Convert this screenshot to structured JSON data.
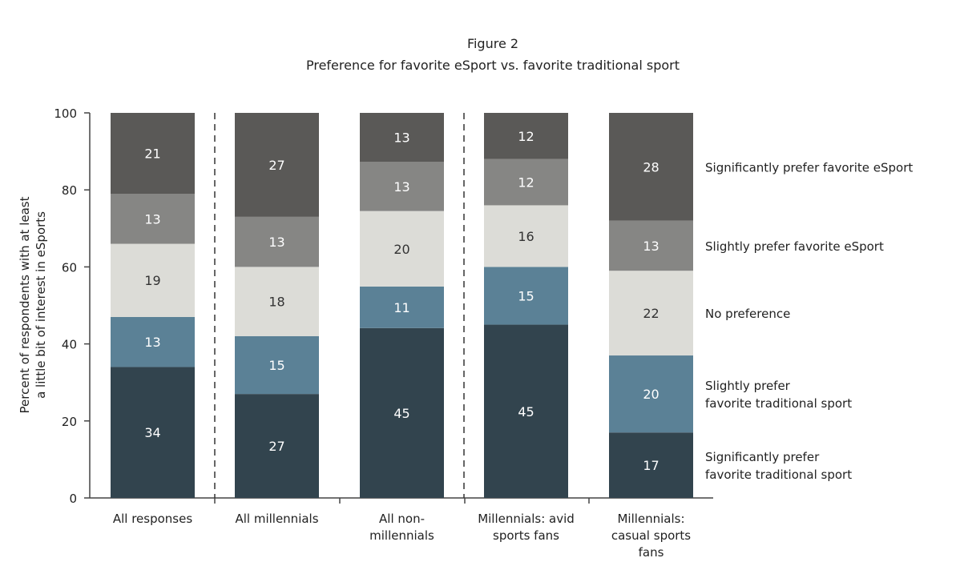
{
  "chart_data": {
    "type": "bar",
    "stacked": true,
    "title": "Figure 2",
    "subtitle": "Preference for favorite eSport vs. favorite traditional sport",
    "ylabel": [
      "Percent of respondents with at least",
      "a little bit of interest in eSports"
    ],
    "xlabel": "",
    "ylim": [
      0,
      100
    ],
    "yticks": [
      0,
      20,
      40,
      60,
      80,
      100
    ],
    "grid": false,
    "legend_placement": "right",
    "categories": [
      [
        "All responses"
      ],
      [
        "All millennials"
      ],
      [
        "All non-",
        "millennials"
      ],
      [
        "Millennials: avid",
        "sports fans"
      ],
      [
        "Millennials:",
        "casual sports",
        "fans"
      ]
    ],
    "group_separators_after": [
      0,
      2
    ],
    "series": [
      {
        "name": [
          "Significantly prefer",
          "favorite traditional sport"
        ],
        "color": "#32444e",
        "values": [
          34,
          27,
          45,
          45,
          17
        ]
      },
      {
        "name": [
          "Slightly prefer",
          "favorite traditional sport"
        ],
        "color": "#5b8196",
        "values": [
          13,
          15,
          11,
          15,
          20
        ]
      },
      {
        "name": [
          "No preference"
        ],
        "color": "#dcdcd7",
        "values": [
          19,
          18,
          20,
          16,
          22
        ]
      },
      {
        "name": [
          "Slightly prefer favorite eSport"
        ],
        "color": "#868684",
        "values": [
          13,
          13,
          13,
          12,
          13
        ]
      },
      {
        "name": [
          "Significantly prefer favorite eSport"
        ],
        "color": "#5a5957",
        "values": [
          21,
          27,
          13,
          12,
          28
        ]
      }
    ]
  }
}
